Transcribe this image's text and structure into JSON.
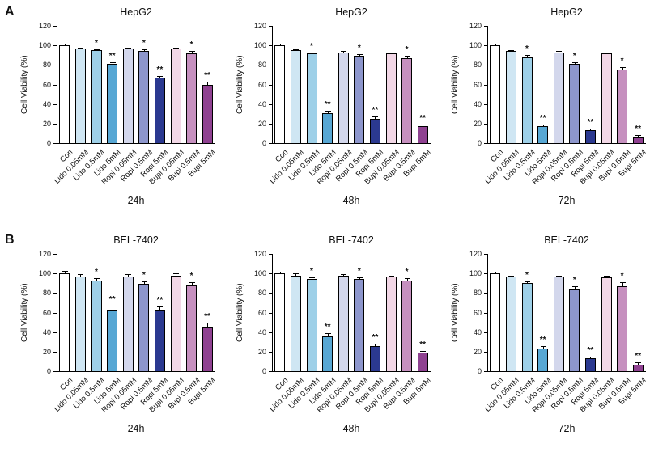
{
  "figure": {
    "panels": [
      {
        "label": "A",
        "cell_line": "HepG2"
      },
      {
        "label": "B",
        "cell_line": "BEL-7402"
      }
    ]
  },
  "style": {
    "bar_colors": [
      "#ffffff",
      "#cfe6f3",
      "#9ed0e8",
      "#57a7d4",
      "#d3d7ec",
      "#8d96cc",
      "#2b3990",
      "#f2d7e6",
      "#c690bf",
      "#8f4191"
    ],
    "axis_color": "#000000"
  },
  "chart_data": [
    {
      "type": "bar",
      "panel": "A",
      "title": "HepG2",
      "timepoint": "24h",
      "ylabel": "Cell Viability (%)",
      "ylim": [
        0,
        120
      ],
      "yticks": [
        0,
        20,
        40,
        60,
        80,
        100,
        120
      ],
      "categories": [
        "Con",
        "Lido 0.05mM",
        "Lido 0.5mM",
        "Lido 5mM",
        "Ropi 0.05mM",
        "Ropi 0.5mM",
        "Ropi 5mM",
        "Bupi 0.05mM",
        "Bupi 0.5mM",
        "Bupi 5mM"
      ],
      "values": [
        100,
        97,
        95,
        81,
        97,
        94,
        67,
        97,
        92,
        60
      ],
      "errors": [
        2,
        1,
        1,
        2,
        1,
        2,
        2,
        1,
        2,
        3
      ],
      "significance": [
        "",
        "",
        "*",
        "**",
        "",
        "*",
        "**",
        "",
        "*",
        "**"
      ]
    },
    {
      "type": "bar",
      "panel": "A",
      "title": "HepG2",
      "timepoint": "48h",
      "ylabel": "Cell Viability (%)",
      "ylim": [
        0,
        120
      ],
      "yticks": [
        0,
        20,
        40,
        60,
        80,
        100,
        120
      ],
      "categories": [
        "Con",
        "Lido 0.05mM",
        "Lido 0.5mM",
        "Lido 5mM",
        "Ropi 0.05mM",
        "Ropi 0.5mM",
        "Ropi 5mM",
        "Bupi 0.05mM",
        "Bupi 0.5mM",
        "Bupi 5mM"
      ],
      "values": [
        100,
        95,
        92,
        31,
        93,
        89,
        25,
        92,
        87,
        17
      ],
      "errors": [
        2,
        1,
        1,
        2,
        1,
        2,
        2,
        1,
        2,
        2
      ],
      "significance": [
        "",
        "",
        "*",
        "**",
        "",
        "*",
        "**",
        "",
        "*",
        "**"
      ]
    },
    {
      "type": "bar",
      "panel": "A",
      "title": "HepG2",
      "timepoint": "72h",
      "ylabel": "Cell Viability (%)",
      "ylim": [
        0,
        120
      ],
      "yticks": [
        0,
        20,
        40,
        60,
        80,
        100,
        120
      ],
      "categories": [
        "Con",
        "Lido 0.05mM",
        "Lido 0.5mM",
        "Lido 5mM",
        "Ropi 0.05mM",
        "Ropi 0.5mM",
        "Ropi 5mM",
        "Bupi 0.05mM",
        "Bupi 0.5mM",
        "Bupi 5mM"
      ],
      "values": [
        100,
        94,
        88,
        17,
        93,
        81,
        13,
        92,
        75,
        6
      ],
      "errors": [
        2,
        1,
        2,
        2,
        1,
        2,
        2,
        1,
        3,
        2
      ],
      "significance": [
        "",
        "",
        "*",
        "**",
        "",
        "*",
        "**",
        "",
        "*",
        "**"
      ]
    },
    {
      "type": "bar",
      "panel": "B",
      "title": "BEL-7402",
      "timepoint": "24h",
      "ylabel": "Cell Viability (%)",
      "ylim": [
        0,
        120
      ],
      "yticks": [
        0,
        20,
        40,
        60,
        80,
        100,
        120
      ],
      "categories": [
        "Con",
        "Lido 0.05mM",
        "Lido 0.5mM",
        "Lido 5mM",
        "Ropi 0.05mM",
        "Ropi 0.5mM",
        "Ropi 5mM",
        "Bupi 0.05mM",
        "Bupi 0.5mM",
        "Bupi 5mM"
      ],
      "values": [
        100,
        97,
        93,
        62,
        97,
        89,
        62,
        98,
        88,
        45
      ],
      "errors": [
        3,
        2,
        2,
        5,
        2,
        3,
        4,
        2,
        3,
        5
      ],
      "significance": [
        "",
        "",
        "*",
        "**",
        "",
        "*",
        "**",
        "",
        "*",
        "**"
      ]
    },
    {
      "type": "bar",
      "panel": "B",
      "title": "BEL-7402",
      "timepoint": "48h",
      "ylabel": "Cell Viability (%)",
      "ylim": [
        0,
        120
      ],
      "yticks": [
        0,
        20,
        40,
        60,
        80,
        100,
        120
      ],
      "categories": [
        "Con",
        "Lido 0.05mM",
        "Lido 0.5mM",
        "Lido 5mM",
        "Ropi 0.05mM",
        "Ropi 0.5mM",
        "Ropi 5mM",
        "Bupi 0.05mM",
        "Bupi 0.5mM",
        "Bupi 5mM"
      ],
      "values": [
        100,
        98,
        94,
        36,
        98,
        94,
        26,
        97,
        93,
        19
      ],
      "errors": [
        2,
        2,
        2,
        3,
        1,
        2,
        2,
        1,
        2,
        2
      ],
      "significance": [
        "",
        "",
        "*",
        "**",
        "",
        "*",
        "**",
        "",
        "*",
        "**"
      ]
    },
    {
      "type": "bar",
      "panel": "B",
      "title": "BEL-7402",
      "timepoint": "72h",
      "ylabel": "Cell Viability (%)",
      "ylim": [
        0,
        120
      ],
      "yticks": [
        0,
        20,
        40,
        60,
        80,
        100,
        120
      ],
      "categories": [
        "Con",
        "Lido 0.05mM",
        "Lido 0.5mM",
        "Lido 5mM",
        "Ropi 0.05mM",
        "Ropi 0.5mM",
        "Ropi 5mM",
        "Bupi 0.05mM",
        "Bupi 0.5mM",
        "Bupi 5mM"
      ],
      "values": [
        100,
        97,
        90,
        23,
        97,
        84,
        13,
        96,
        87,
        7
      ],
      "errors": [
        2,
        1,
        2,
        3,
        1,
        3,
        2,
        2,
        4,
        2
      ],
      "significance": [
        "",
        "",
        "*",
        "**",
        "",
        "*",
        "**",
        "",
        "*",
        "**"
      ]
    }
  ]
}
